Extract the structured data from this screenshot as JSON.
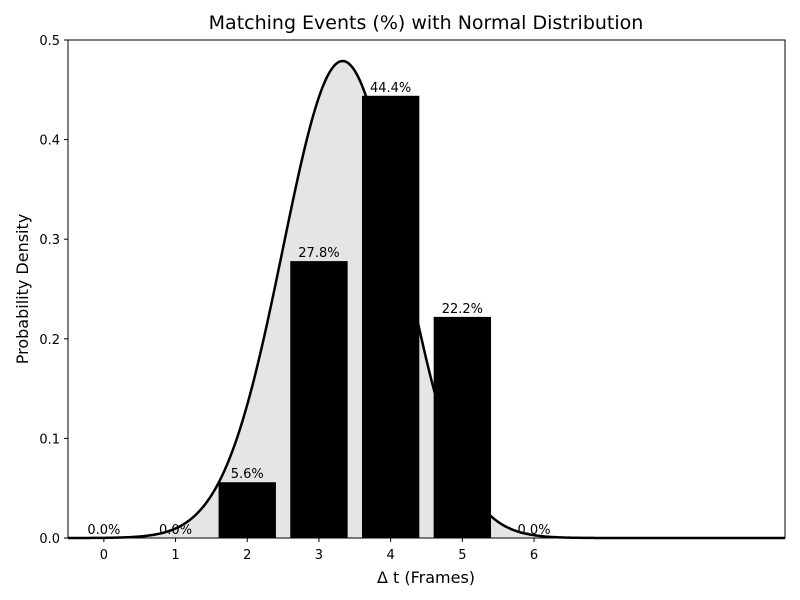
{
  "chart_data": {
    "type": "bar",
    "title": "Matching Events (%) with Normal Distribution",
    "xlabel": "Δ t (Frames)",
    "ylabel": "Probability Density",
    "categories": [
      "0",
      "1",
      "2",
      "3",
      "4",
      "5",
      "6"
    ],
    "x": [
      0,
      1,
      2,
      3,
      4,
      5,
      6
    ],
    "values": [
      0.0,
      0.0,
      0.056,
      0.278,
      0.444,
      0.222,
      0.0
    ],
    "data_labels": [
      "0.0%",
      "0.0%",
      "5.6%",
      "27.8%",
      "44.4%",
      "22.2%",
      "0.0%"
    ],
    "xlim": [
      -0.5,
      9.5
    ],
    "ylim": [
      0,
      0.5
    ],
    "yticks": [
      0.0,
      0.1,
      0.2,
      0.3,
      0.4,
      0.5
    ],
    "ytick_labels": [
      "0.0",
      "0.1",
      "0.2",
      "0.3",
      "0.4",
      "0.5"
    ],
    "grid": false,
    "overlay": {
      "type": "normal-pdf",
      "mean": 3.33,
      "std": 0.833,
      "fill_color": "#e5e5e5",
      "line_color": "#000000"
    },
    "bar_color": "#000000"
  }
}
